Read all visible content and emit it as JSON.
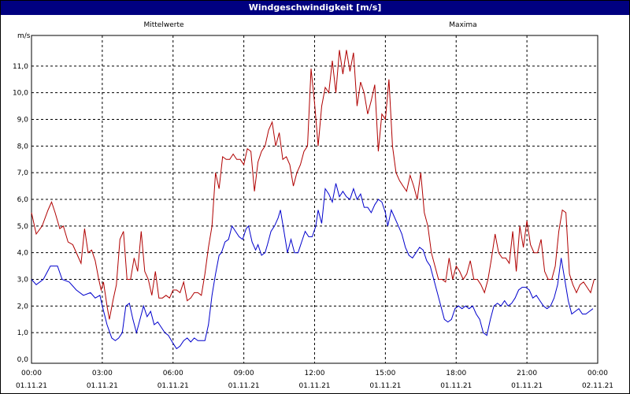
{
  "window": {
    "title": "Windgeschwindigkeit [m/s]"
  },
  "chart_data": {
    "type": "line",
    "title": "Windgeschwindigkeit [m/s]",
    "ylabel": "m/s",
    "ylim": [
      0,
      12
    ],
    "yticks": [
      "0,0",
      "1,0",
      "2,0",
      "3,0",
      "4,0",
      "5,0",
      "6,0",
      "7,0",
      "8,0",
      "9,0",
      "10,0",
      "11,0"
    ],
    "xlim": [
      0,
      24
    ],
    "xticks": [
      {
        "time": "00:00",
        "date": "01.11.21"
      },
      {
        "time": "03:00",
        "date": "01.11.21"
      },
      {
        "time": "06:00",
        "date": "01.11.21"
      },
      {
        "time": "09:00",
        "date": "01.11.21"
      },
      {
        "time": "12:00",
        "date": "01.11.21"
      },
      {
        "time": "15:00",
        "date": "01.11.21"
      },
      {
        "time": "18:00",
        "date": "01.11.21"
      },
      {
        "time": "21:00",
        "date": "01.11.21"
      },
      {
        "time": "00:00",
        "date": "02.11.21"
      }
    ],
    "grid": true,
    "legend": "top",
    "series": [
      {
        "name": "Mittelwerte",
        "color": "#0000cc",
        "points": [
          [
            0,
            3.0
          ],
          [
            0.2,
            2.8
          ],
          [
            0.5,
            3.0
          ],
          [
            0.8,
            3.5
          ],
          [
            1.1,
            3.5
          ],
          [
            1.3,
            3.0
          ],
          [
            1.6,
            2.9
          ],
          [
            1.9,
            2.6
          ],
          [
            2.2,
            2.4
          ],
          [
            2.5,
            2.5
          ],
          [
            2.7,
            2.3
          ],
          [
            2.9,
            2.4
          ],
          [
            3.0,
            2.0
          ],
          [
            3.2,
            1.3
          ],
          [
            3.4,
            0.8
          ],
          [
            3.55,
            0.7
          ],
          [
            3.7,
            0.8
          ],
          [
            3.85,
            1.0
          ],
          [
            4.0,
            2.0
          ],
          [
            4.15,
            2.1
          ],
          [
            4.3,
            1.5
          ],
          [
            4.45,
            1.0
          ],
          [
            4.6,
            1.5
          ],
          [
            4.75,
            2.0
          ],
          [
            4.9,
            1.6
          ],
          [
            5.05,
            1.8
          ],
          [
            5.2,
            1.3
          ],
          [
            5.35,
            1.4
          ],
          [
            5.5,
            1.2
          ],
          [
            5.65,
            1.0
          ],
          [
            5.8,
            0.9
          ],
          [
            6.0,
            0.6
          ],
          [
            6.15,
            0.4
          ],
          [
            6.3,
            0.5
          ],
          [
            6.45,
            0.7
          ],
          [
            6.6,
            0.8
          ],
          [
            6.75,
            0.65
          ],
          [
            6.9,
            0.8
          ],
          [
            7.05,
            0.7
          ],
          [
            7.2,
            0.7
          ],
          [
            7.35,
            0.7
          ],
          [
            7.5,
            1.3
          ],
          [
            7.65,
            2.4
          ],
          [
            7.8,
            3.2
          ],
          [
            7.95,
            3.9
          ],
          [
            8.05,
            4.0
          ],
          [
            8.2,
            4.4
          ],
          [
            8.35,
            4.5
          ],
          [
            8.5,
            5.0
          ],
          [
            8.65,
            4.8
          ],
          [
            8.8,
            4.6
          ],
          [
            8.95,
            4.5
          ],
          [
            9.1,
            4.9
          ],
          [
            9.2,
            5.0
          ],
          [
            9.35,
            4.4
          ],
          [
            9.5,
            4.1
          ],
          [
            9.6,
            4.3
          ],
          [
            9.75,
            3.9
          ],
          [
            9.9,
            4.0
          ],
          [
            10.0,
            4.3
          ],
          [
            10.15,
            4.8
          ],
          [
            10.3,
            5.0
          ],
          [
            10.45,
            5.3
          ],
          [
            10.55,
            5.6
          ],
          [
            10.7,
            4.8
          ],
          [
            10.85,
            4.0
          ],
          [
            11.0,
            4.5
          ],
          [
            11.15,
            4.0
          ],
          [
            11.3,
            4.0
          ],
          [
            11.45,
            4.4
          ],
          [
            11.6,
            4.8
          ],
          [
            11.75,
            4.6
          ],
          [
            11.9,
            4.6
          ],
          [
            12.05,
            5.0
          ],
          [
            12.15,
            5.6
          ],
          [
            12.3,
            5.1
          ],
          [
            12.45,
            6.4
          ],
          [
            12.6,
            6.2
          ],
          [
            12.75,
            5.9
          ],
          [
            12.9,
            6.6
          ],
          [
            13.05,
            6.1
          ],
          [
            13.2,
            6.3
          ],
          [
            13.35,
            6.1
          ],
          [
            13.5,
            6.0
          ],
          [
            13.65,
            6.4
          ],
          [
            13.8,
            6.0
          ],
          [
            13.95,
            6.2
          ],
          [
            14.1,
            5.7
          ],
          [
            14.25,
            5.7
          ],
          [
            14.4,
            5.5
          ],
          [
            14.55,
            5.8
          ],
          [
            14.7,
            6.0
          ],
          [
            14.85,
            5.9
          ],
          [
            15.0,
            5.5
          ],
          [
            15.1,
            5.0
          ],
          [
            15.25,
            5.6
          ],
          [
            15.4,
            5.3
          ],
          [
            15.55,
            5.0
          ],
          [
            15.7,
            4.7
          ],
          [
            15.85,
            4.2
          ],
          [
            16.0,
            3.9
          ],
          [
            16.15,
            3.8
          ],
          [
            16.3,
            4.0
          ],
          [
            16.45,
            4.2
          ],
          [
            16.6,
            4.1
          ],
          [
            16.75,
            3.7
          ],
          [
            16.9,
            3.5
          ],
          [
            17.05,
            3.0
          ],
          [
            17.2,
            2.5
          ],
          [
            17.35,
            2.0
          ],
          [
            17.5,
            1.5
          ],
          [
            17.65,
            1.4
          ],
          [
            17.8,
            1.5
          ],
          [
            17.95,
            1.9
          ],
          [
            18.1,
            2.0
          ],
          [
            18.25,
            1.9
          ],
          [
            18.4,
            2.0
          ],
          [
            18.55,
            1.9
          ],
          [
            18.7,
            2.0
          ],
          [
            18.85,
            1.7
          ],
          [
            19.0,
            1.5
          ],
          [
            19.15,
            1.0
          ],
          [
            19.3,
            0.9
          ],
          [
            19.45,
            1.5
          ],
          [
            19.6,
            2.0
          ],
          [
            19.75,
            2.1
          ],
          [
            19.9,
            2.0
          ],
          [
            20.05,
            2.2
          ],
          [
            20.2,
            2.0
          ],
          [
            20.35,
            2.1
          ],
          [
            20.5,
            2.3
          ],
          [
            20.65,
            2.6
          ],
          [
            20.8,
            2.7
          ],
          [
            20.95,
            2.7
          ],
          [
            21.1,
            2.6
          ],
          [
            21.25,
            2.3
          ],
          [
            21.4,
            2.4
          ],
          [
            21.55,
            2.2
          ],
          [
            21.7,
            2.0
          ],
          [
            21.85,
            1.9
          ],
          [
            22.0,
            2.0
          ],
          [
            22.15,
            2.3
          ],
          [
            22.3,
            2.8
          ],
          [
            22.45,
            3.8
          ],
          [
            22.6,
            3.0
          ],
          [
            22.75,
            2.2
          ],
          [
            22.9,
            1.7
          ],
          [
            23.05,
            1.8
          ],
          [
            23.2,
            1.9
          ],
          [
            23.35,
            1.7
          ],
          [
            23.5,
            1.7
          ],
          [
            23.65,
            1.8
          ],
          [
            23.8,
            1.9
          ]
        ]
      },
      {
        "name": "Maxima",
        "color": "#b00000",
        "points": [
          [
            0,
            5.5
          ],
          [
            0.2,
            4.7
          ],
          [
            0.45,
            5.0
          ],
          [
            0.7,
            5.6
          ],
          [
            0.85,
            5.9
          ],
          [
            1.0,
            5.5
          ],
          [
            1.2,
            4.9
          ],
          [
            1.35,
            5.0
          ],
          [
            1.55,
            4.4
          ],
          [
            1.75,
            4.3
          ],
          [
            1.95,
            3.9
          ],
          [
            2.1,
            3.6
          ],
          [
            2.25,
            4.9
          ],
          [
            2.4,
            4.0
          ],
          [
            2.55,
            4.1
          ],
          [
            2.7,
            3.7
          ],
          [
            2.85,
            3.0
          ],
          [
            2.95,
            2.6
          ],
          [
            3.05,
            2.9
          ],
          [
            3.2,
            2.0
          ],
          [
            3.3,
            1.5
          ],
          [
            3.45,
            2.2
          ],
          [
            3.6,
            2.8
          ],
          [
            3.75,
            4.5
          ],
          [
            3.9,
            4.8
          ],
          [
            4.05,
            3.0
          ],
          [
            4.2,
            3.0
          ],
          [
            4.35,
            3.8
          ],
          [
            4.5,
            3.3
          ],
          [
            4.65,
            4.8
          ],
          [
            4.8,
            3.3
          ],
          [
            4.95,
            3.0
          ],
          [
            5.1,
            2.4
          ],
          [
            5.25,
            3.3
          ],
          [
            5.4,
            2.3
          ],
          [
            5.55,
            2.3
          ],
          [
            5.7,
            2.4
          ],
          [
            5.85,
            2.3
          ],
          [
            6.0,
            2.6
          ],
          [
            6.15,
            2.6
          ],
          [
            6.3,
            2.5
          ],
          [
            6.45,
            2.9
          ],
          [
            6.6,
            2.2
          ],
          [
            6.75,
            2.3
          ],
          [
            6.9,
            2.5
          ],
          [
            7.05,
            2.5
          ],
          [
            7.2,
            2.4
          ],
          [
            7.35,
            3.2
          ],
          [
            7.5,
            4.2
          ],
          [
            7.65,
            5.0
          ],
          [
            7.8,
            7.0
          ],
          [
            7.95,
            6.4
          ],
          [
            8.1,
            7.6
          ],
          [
            8.25,
            7.5
          ],
          [
            8.4,
            7.5
          ],
          [
            8.55,
            7.7
          ],
          [
            8.7,
            7.5
          ],
          [
            8.85,
            7.5
          ],
          [
            9.0,
            7.3
          ],
          [
            9.15,
            7.9
          ],
          [
            9.3,
            7.8
          ],
          [
            9.45,
            6.3
          ],
          [
            9.6,
            7.4
          ],
          [
            9.75,
            7.8
          ],
          [
            9.9,
            8.0
          ],
          [
            10.05,
            8.6
          ],
          [
            10.2,
            8.9
          ],
          [
            10.35,
            8.0
          ],
          [
            10.5,
            8.5
          ],
          [
            10.65,
            7.5
          ],
          [
            10.8,
            7.6
          ],
          [
            10.95,
            7.3
          ],
          [
            11.1,
            6.5
          ],
          [
            11.25,
            7.0
          ],
          [
            11.4,
            7.3
          ],
          [
            11.55,
            7.8
          ],
          [
            11.7,
            8.0
          ],
          [
            11.85,
            10.9
          ],
          [
            12.0,
            9.6
          ],
          [
            12.15,
            8.0
          ],
          [
            12.3,
            9.5
          ],
          [
            12.45,
            10.2
          ],
          [
            12.6,
            10.0
          ],
          [
            12.75,
            11.2
          ],
          [
            12.9,
            10.0
          ],
          [
            13.05,
            11.6
          ],
          [
            13.2,
            10.7
          ],
          [
            13.35,
            11.6
          ],
          [
            13.5,
            10.8
          ],
          [
            13.65,
            11.5
          ],
          [
            13.8,
            9.5
          ],
          [
            13.95,
            10.4
          ],
          [
            14.1,
            10.0
          ],
          [
            14.25,
            9.2
          ],
          [
            14.4,
            9.7
          ],
          [
            14.55,
            10.3
          ],
          [
            14.7,
            7.8
          ],
          [
            14.85,
            9.2
          ],
          [
            15.0,
            9.0
          ],
          [
            15.15,
            10.5
          ],
          [
            15.3,
            8.0
          ],
          [
            15.45,
            7.0
          ],
          [
            15.6,
            6.7
          ],
          [
            15.75,
            6.5
          ],
          [
            15.9,
            6.3
          ],
          [
            16.05,
            6.9
          ],
          [
            16.2,
            6.5
          ],
          [
            16.35,
            6.0
          ],
          [
            16.5,
            7.0
          ],
          [
            16.65,
            5.5
          ],
          [
            16.8,
            5.0
          ],
          [
            16.95,
            4.0
          ],
          [
            17.1,
            3.5
          ],
          [
            17.25,
            3.0
          ],
          [
            17.4,
            3.0
          ],
          [
            17.55,
            2.9
          ],
          [
            17.7,
            3.8
          ],
          [
            17.85,
            3.0
          ],
          [
            18.0,
            3.5
          ],
          [
            18.15,
            3.3
          ],
          [
            18.3,
            3.0
          ],
          [
            18.45,
            3.2
          ],
          [
            18.6,
            3.7
          ],
          [
            18.75,
            3.0
          ],
          [
            18.9,
            3.0
          ],
          [
            19.05,
            2.8
          ],
          [
            19.2,
            2.5
          ],
          [
            19.35,
            3.0
          ],
          [
            19.5,
            3.8
          ],
          [
            19.65,
            4.7
          ],
          [
            19.8,
            4.0
          ],
          [
            19.95,
            3.8
          ],
          [
            20.1,
            3.8
          ],
          [
            20.25,
            3.6
          ],
          [
            20.4,
            4.8
          ],
          [
            20.55,
            3.3
          ],
          [
            20.7,
            5.0
          ],
          [
            20.85,
            4.2
          ],
          [
            21.0,
            5.2
          ],
          [
            21.15,
            4.3
          ],
          [
            21.3,
            4.0
          ],
          [
            21.45,
            4.0
          ],
          [
            21.6,
            4.5
          ],
          [
            21.75,
            3.3
          ],
          [
            21.9,
            3.0
          ],
          [
            22.05,
            3.0
          ],
          [
            22.2,
            3.5
          ],
          [
            22.35,
            4.8
          ],
          [
            22.5,
            5.6
          ],
          [
            22.65,
            5.5
          ],
          [
            22.8,
            3.2
          ],
          [
            22.95,
            2.8
          ],
          [
            23.1,
            2.5
          ],
          [
            23.25,
            2.8
          ],
          [
            23.4,
            2.9
          ],
          [
            23.55,
            2.7
          ],
          [
            23.7,
            2.5
          ],
          [
            23.85,
            3.0
          ]
        ]
      }
    ]
  }
}
